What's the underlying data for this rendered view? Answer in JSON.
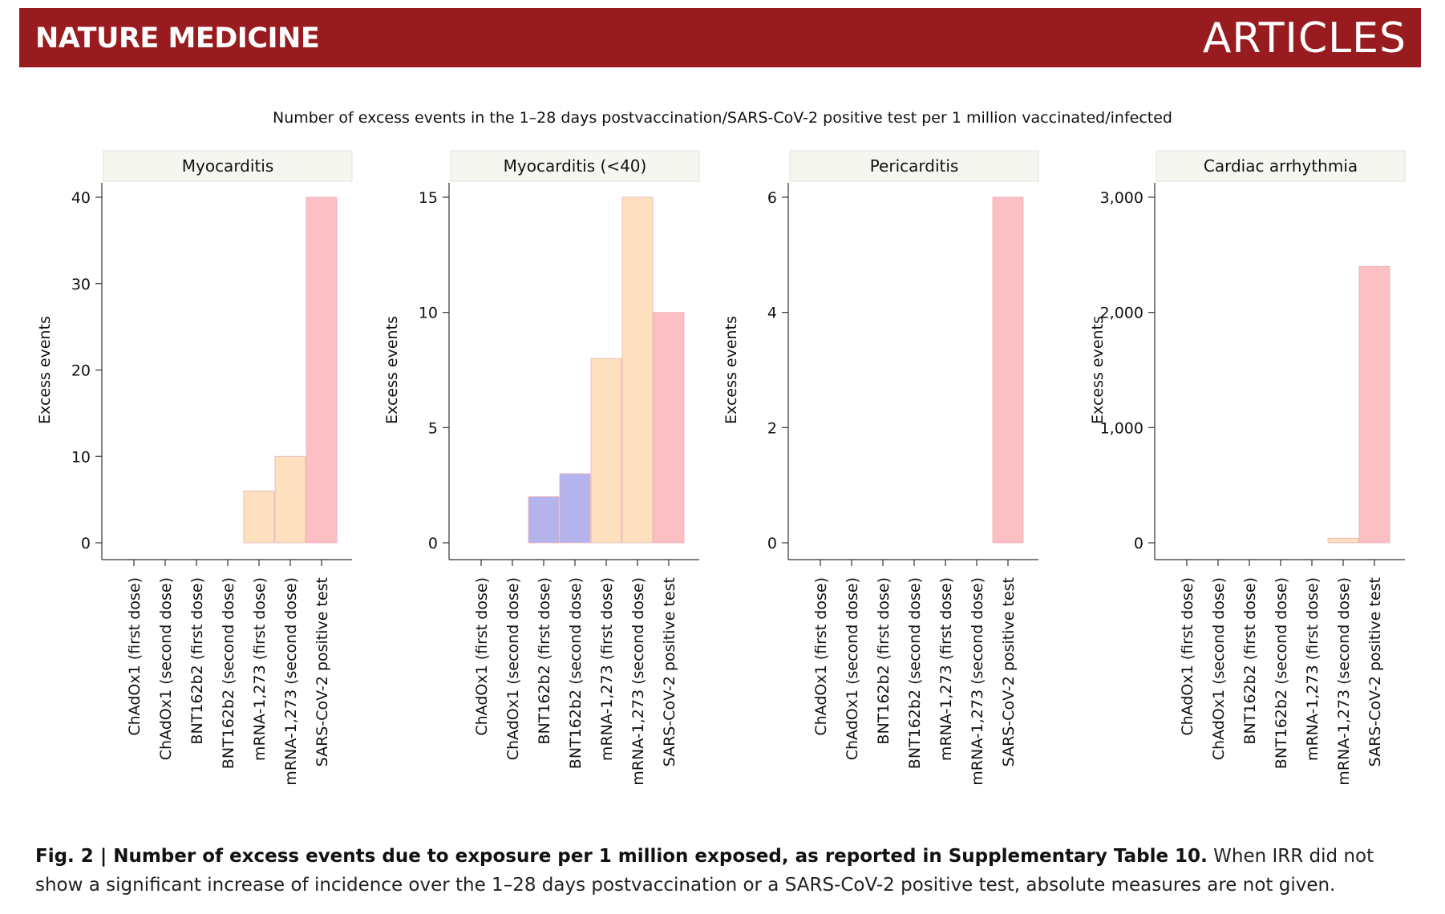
{
  "header": {
    "journal": "NATURE MEDICINE",
    "section": "ARTICLES",
    "banner_color": "#981c1f"
  },
  "figure_title": "Number of excess events in the 1–28 days postvaccination/SARS-CoV-2 positive test per 1 million vaccinated/infected",
  "caption": {
    "label": "Fig. 2 | Number of excess events due to exposure per 1 million exposed, as reported in Supplementary Table 10.",
    "text": " When IRR did not show a significant increase of incidence over the 1–28 days postvaccination or a SARS-CoV-2 positive test, absolute measures are not given."
  },
  "colors": {
    "ChAdOx1": "#b9d7a8",
    "BNT162b2": "#b5b3ec",
    "mRNA": "#fde0bd",
    "SARS": "#fbbfc4",
    "panel_header_bg": "#f6f6f1"
  },
  "chart_data": [
    {
      "type": "bar",
      "title": "Myocarditis",
      "ylabel": "Excess events",
      "categories": [
        "ChAdOx1 (first dose)",
        "ChAdOx1 (second dose)",
        "BNT162b2 (first dose)",
        "BNT162b2 (second dose)",
        "mRNA-1,273 (first dose)",
        "mRNA-1,273 (second dose)",
        "SARS-CoV-2 positive test"
      ],
      "groups": [
        "ChAdOx1",
        "ChAdOx1",
        "BNT162b2",
        "BNT162b2",
        "mRNA",
        "mRNA",
        "SARS"
      ],
      "values": [
        0,
        0,
        0,
        0,
        6,
        10,
        40
      ],
      "ylim": [
        0,
        40
      ],
      "yticks": [
        0,
        10,
        20,
        30,
        40
      ],
      "ytick_labels": [
        "0",
        "10",
        "20",
        "30",
        "40"
      ]
    },
    {
      "type": "bar",
      "title": "Myocarditis (<40)",
      "ylabel": "Excess events",
      "categories": [
        "ChAdOx1 (first dose)",
        "ChAdOx1 (second dose)",
        "BNT162b2 (first dose)",
        "BNT162b2 (second dose)",
        "mRNA-1,273 (first dose)",
        "mRNA-1,273 (second dose)",
        "SARS-CoV-2 positive test"
      ],
      "groups": [
        "ChAdOx1",
        "ChAdOx1",
        "BNT162b2",
        "BNT162b2",
        "mRNA",
        "mRNA",
        "SARS"
      ],
      "values": [
        0,
        0,
        2,
        3,
        8,
        15,
        10
      ],
      "ylim": [
        0,
        15
      ],
      "yticks": [
        0,
        5,
        10,
        15
      ],
      "ytick_labels": [
        "0",
        "5",
        "10",
        "15"
      ]
    },
    {
      "type": "bar",
      "title": "Pericarditis",
      "ylabel": "Excess events",
      "categories": [
        "ChAdOx1 (first dose)",
        "ChAdOx1 (second dose)",
        "BNT162b2 (first dose)",
        "BNT162b2 (second dose)",
        "mRNA-1,273 (first dose)",
        "mRNA-1,273 (second dose)",
        "SARS-CoV-2 positive test"
      ],
      "groups": [
        "ChAdOx1",
        "ChAdOx1",
        "BNT162b2",
        "BNT162b2",
        "mRNA",
        "mRNA",
        "SARS"
      ],
      "values": [
        0,
        0,
        0,
        0,
        0,
        0,
        6
      ],
      "ylim": [
        0,
        6
      ],
      "yticks": [
        0,
        2,
        4,
        6
      ],
      "ytick_labels": [
        "0",
        "2",
        "4",
        "6"
      ]
    },
    {
      "type": "bar",
      "title": "Cardiac arrhythmia",
      "ylabel": "Excess events",
      "categories": [
        "ChAdOx1 (first dose)",
        "ChAdOx1 (second dose)",
        "BNT162b2 (first dose)",
        "BNT162b2 (second dose)",
        "mRNA-1,273 (first dose)",
        "mRNA-1,273 (second dose)",
        "SARS-CoV-2 positive test"
      ],
      "groups": [
        "ChAdOx1",
        "ChAdOx1",
        "BNT162b2",
        "BNT162b2",
        "mRNA",
        "mRNA",
        "SARS"
      ],
      "values": [
        0,
        0,
        0,
        0,
        0,
        40,
        2400
      ],
      "ylim": [
        0,
        3000
      ],
      "yticks": [
        0,
        1000,
        2000,
        3000
      ],
      "ytick_labels": [
        "0",
        "1,000",
        "2,000",
        "3,000"
      ]
    }
  ]
}
